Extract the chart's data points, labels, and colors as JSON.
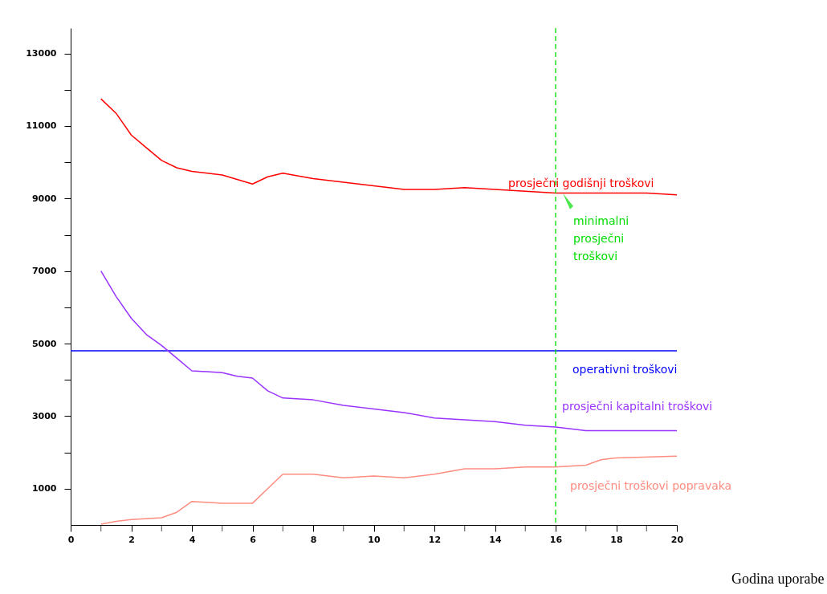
{
  "chart_data": {
    "type": "line",
    "xlabel": "Godina uporabe",
    "xlim": [
      0,
      20
    ],
    "xticks": [
      0,
      {
        "value": 1,
        "label": null
      },
      2,
      {
        "value": 3,
        "label": null
      },
      4,
      {
        "value": 5,
        "label": null
      },
      6,
      {
        "value": 7,
        "label": null
      },
      8,
      {
        "value": 9,
        "label": null
      },
      10,
      {
        "value": 11,
        "label": null
      },
      12,
      {
        "value": 13,
        "label": null
      },
      14,
      {
        "value": 15,
        "label": null
      },
      16,
      {
        "value": 17,
        "label": null
      },
      18,
      {
        "value": 19,
        "label": null
      },
      20
    ],
    "ylim": [
      0,
      13700
    ],
    "yticks": [
      1000,
      {
        "value": 2000,
        "label": null
      },
      3000,
      {
        "value": 4000,
        "label": null
      },
      5000,
      {
        "value": 6000,
        "label": null
      },
      7000,
      {
        "value": 8000,
        "label": null
      },
      9000,
      {
        "value": 10000,
        "label": null
      },
      11000,
      {
        "value": 12000,
        "label": null
      },
      13000
    ],
    "grid": false,
    "legend": false,
    "marker": "none",
    "series": [
      {
        "name": "prosječni godišnji troškovi",
        "color": "#ff0000",
        "x": [
          1,
          1.5,
          2,
          2.5,
          3,
          3.5,
          4,
          5,
          6,
          6.5,
          7,
          8,
          9,
          10,
          11,
          12,
          13,
          14,
          15,
          16,
          17,
          18,
          19,
          20
        ],
        "values": [
          11750,
          11350,
          10750,
          10400,
          10050,
          9850,
          9750,
          9650,
          9400,
          9600,
          9700,
          9550,
          9450,
          9350,
          9250,
          9250,
          9300,
          9250,
          9200,
          9150,
          9150,
          9150,
          9150,
          9100
        ]
      },
      {
        "name": "operativni troškovi",
        "color": "#0000ff",
        "x": [
          0,
          20
        ],
        "values": [
          4800,
          4800
        ]
      },
      {
        "name": "prosječni kapitalni troškovi",
        "color": "#9933ff",
        "x": [
          1,
          1.5,
          2,
          2.5,
          3,
          3.5,
          4,
          5,
          5.5,
          6,
          6.5,
          7,
          8,
          9,
          10,
          11,
          12,
          13,
          14,
          15,
          16,
          17,
          18,
          20
        ],
        "values": [
          7000,
          6300,
          5700,
          5250,
          4950,
          4600,
          4250,
          4200,
          4100,
          4050,
          3700,
          3500,
          3450,
          3300,
          3200,
          3100,
          2950,
          2900,
          2850,
          2750,
          2700,
          2600,
          2600,
          2600
        ]
      },
      {
        "name": "prosječni troškovi popravaka",
        "color": "#ff8c80",
        "x": [
          1,
          1.5,
          2,
          3,
          3.5,
          4,
          5,
          6,
          6.5,
          7,
          8,
          9,
          10,
          11,
          12,
          13,
          14,
          15,
          16,
          17,
          17.5,
          18,
          20
        ],
        "values": [
          20,
          100,
          150,
          200,
          350,
          650,
          600,
          600,
          1000,
          1400,
          1400,
          1300,
          1350,
          1300,
          1400,
          1550,
          1550,
          1600,
          1600,
          1650,
          1800,
          1850,
          1900
        ]
      }
    ],
    "ref_lines": [
      {
        "axis": "x",
        "value": 16,
        "color": "#00dd00",
        "line_style": "dashed"
      }
    ],
    "annotations": [
      {
        "text": "minimalni prosječni troškovi",
        "x": 16,
        "y": 9100
      }
    ]
  }
}
